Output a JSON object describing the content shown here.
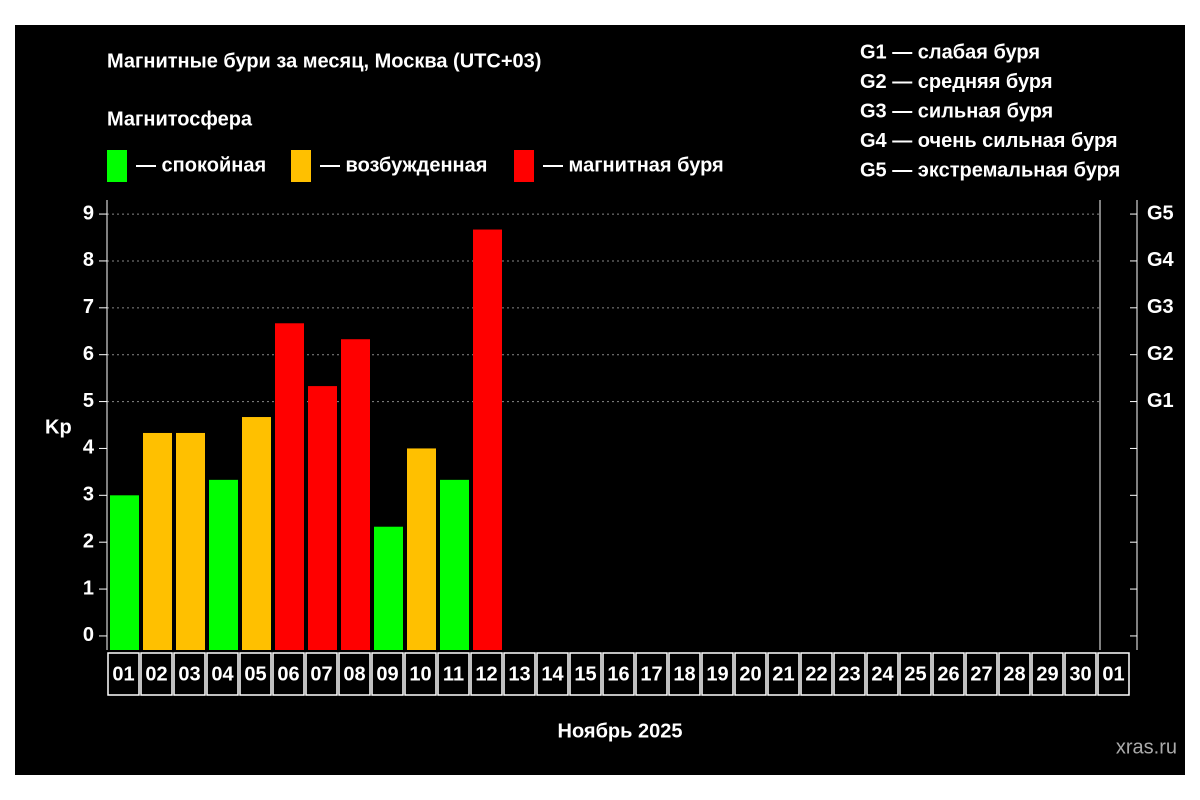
{
  "chart_data": {
    "type": "bar",
    "title": "Магнитные бури за месяц, Москва (UTC+03)",
    "legend_title": "Магнитосфера",
    "legend": [
      {
        "name": "— спокойная",
        "color": "#00ff00"
      },
      {
        "name": "— возбужденная",
        "color": "#ffc000"
      },
      {
        "name": "— магнитная буря",
        "color": "#ff0000"
      }
    ],
    "scale_notes": [
      "G1 — слабая буря",
      "G2 — средняя буря",
      "G3 — сильная буря",
      "G4 — очень сильная буря",
      "G5 — экстремальная буря"
    ],
    "y_label": "Kp",
    "x_label": "Ноябрь 2025",
    "watermark": "xras.ru",
    "categories": [
      "01",
      "02",
      "03",
      "04",
      "05",
      "06",
      "07",
      "08",
      "09",
      "10",
      "11",
      "12",
      "13",
      "14",
      "15",
      "16",
      "17",
      "18",
      "19",
      "20",
      "21",
      "22",
      "23",
      "24",
      "25",
      "26",
      "27",
      "28",
      "29",
      "30",
      "01"
    ],
    "values": [
      3.0,
      4.33,
      4.33,
      3.33,
      4.67,
      6.67,
      5.33,
      6.33,
      2.33,
      4.0,
      3.33,
      8.67,
      null,
      null,
      null,
      null,
      null,
      null,
      null,
      null,
      null,
      null,
      null,
      null,
      null,
      null,
      null,
      null,
      null,
      null,
      null
    ],
    "colors": [
      "#00ff00",
      "#ffc000",
      "#ffc000",
      "#00ff00",
      "#ffc000",
      "#ff0000",
      "#ff0000",
      "#ff0000",
      "#00ff00",
      "#ffc000",
      "#00ff00",
      "#ff0000",
      null,
      null,
      null,
      null,
      null,
      null,
      null,
      null,
      null,
      null,
      null,
      null,
      null,
      null,
      null,
      null,
      null,
      null,
      null
    ],
    "ylim": [
      -0.3,
      9.3
    ],
    "yticks": [
      0,
      1,
      2,
      3,
      4,
      5,
      6,
      7,
      8,
      9
    ],
    "y2lim": [
      -0.3,
      9.3
    ],
    "y2ticks": [
      {
        "value": 5,
        "label": "G1"
      },
      {
        "value": 6,
        "label": "G2"
      },
      {
        "value": 7,
        "label": "G3"
      },
      {
        "value": 8,
        "label": "G4"
      },
      {
        "value": 9,
        "label": "G5"
      }
    ],
    "grid": true
  }
}
